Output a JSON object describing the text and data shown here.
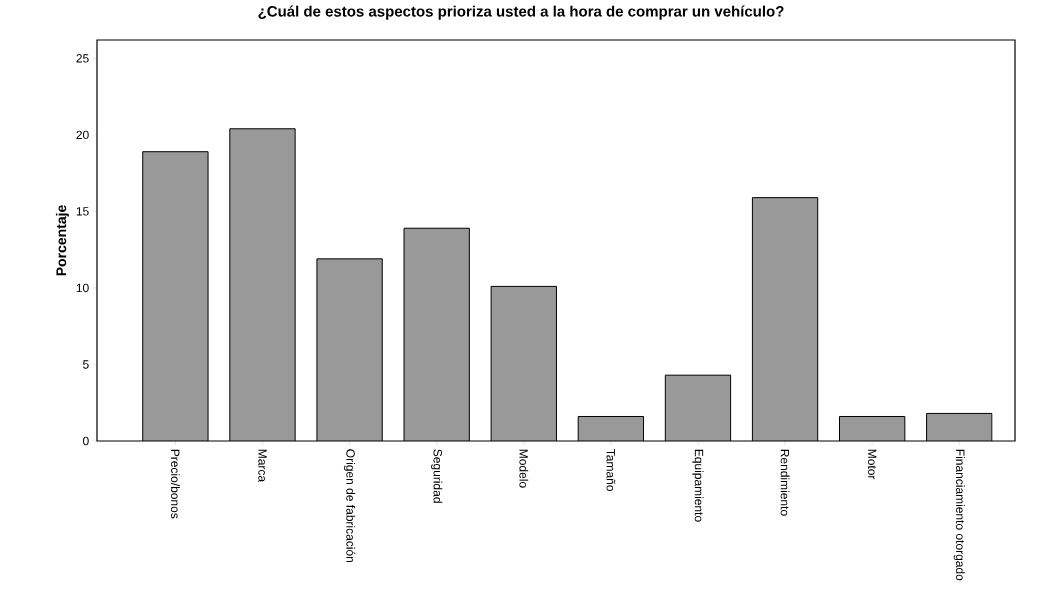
{
  "chart_data": {
    "type": "bar",
    "title": "¿Cuál de estos aspectos prioriza usted a la hora de comprar un vehículo?",
    "ylabel": "Porcentaje",
    "categories": [
      "Precio/bonos",
      "Marca",
      "Origen de fabricación",
      "Seguridad",
      "Modelo",
      "Tamaño",
      "Equipamiento",
      "Rendimiento",
      "Motor",
      "Financiamiento otorgado"
    ],
    "values": [
      18.9,
      20.4,
      11.9,
      13.9,
      10.1,
      1.6,
      4.3,
      15.9,
      1.6,
      1.8
    ],
    "color": "#999999",
    "ylim": [
      0,
      26.2
    ],
    "yticks": [
      0,
      5,
      10,
      15,
      20,
      25
    ],
    "grid": false
  }
}
